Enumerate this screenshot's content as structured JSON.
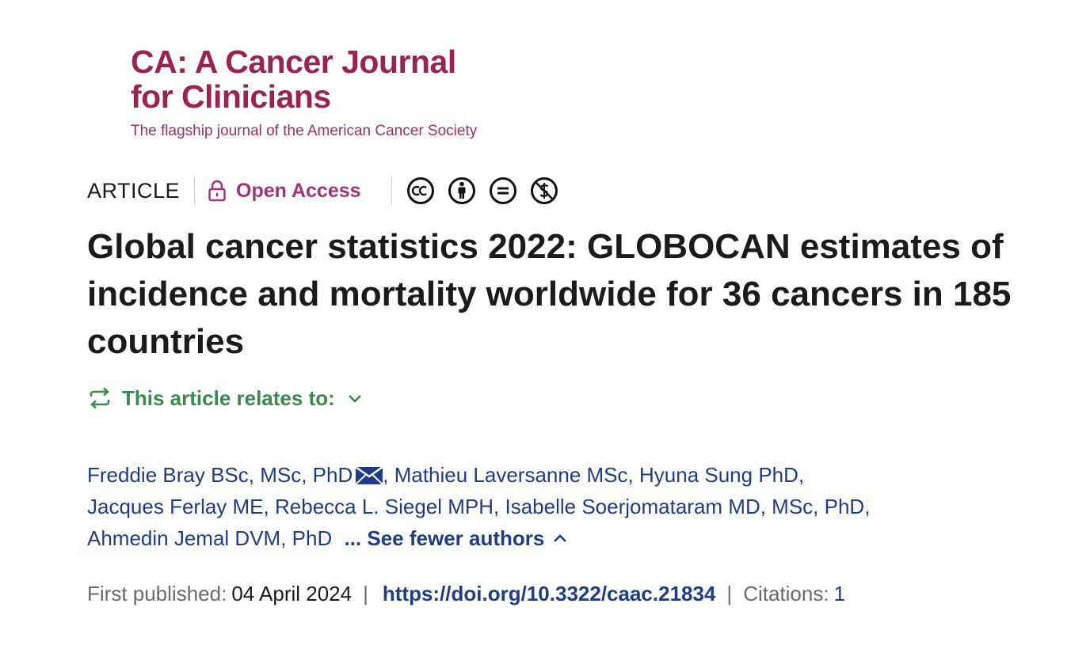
{
  "journal": {
    "name_line1": "CA: A Cancer Journal",
    "name_line2": "for Clinicians",
    "tagline": "The flagship journal of the American Cancer Society",
    "color": "#9b2350"
  },
  "meta": {
    "article_type": "ARTICLE",
    "open_access_label": "Open Access",
    "open_access_color": "#a4327a",
    "license_icons": [
      "cc-icon",
      "by-icon",
      "nd-icon",
      "nc-icon"
    ]
  },
  "article": {
    "title": "Global cancer statistics 2022: GLOBOCAN estimates of incidence and mortality worldwide for 36 cancers in 185 countries"
  },
  "relates": {
    "label": "This article relates to:",
    "color": "#3a8a4e"
  },
  "authors": {
    "list": [
      "Freddie Bray BSc, MSc, PhD",
      "Mathieu Laversanne MSc",
      "Hyuna Sung PhD",
      "Jacques Ferlay ME",
      "Rebecca L. Siegel MPH",
      "Isabelle Soerjomataram MD, MSc, PhD",
      "Ahmedin Jemal DVM, PhD"
    ],
    "comma": ",",
    "see_fewer_label": "... See fewer authors",
    "link_color": "#1f3c88"
  },
  "publication": {
    "first_published_label": "First published:",
    "date": "04 April 2024",
    "separator": "|",
    "doi": "https://doi.org/10.3322/caac.21834",
    "citations_label": "Citations:",
    "citations_count": "1"
  }
}
